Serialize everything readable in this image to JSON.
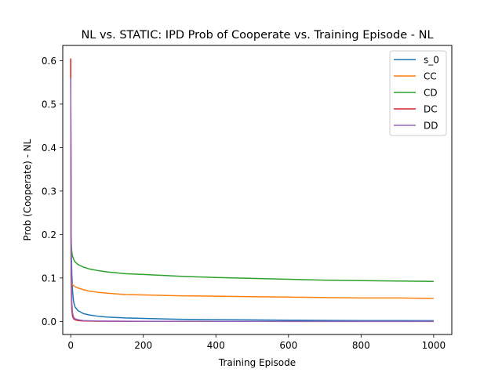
{
  "chart_data": {
    "type": "line",
    "title": "NL vs. STATIC: IPD Prob of Cooperate vs. Training Episode - NL",
    "xlabel": "Training Episode",
    "ylabel": "Prob (Cooperate) - NL",
    "xlim": [
      -22,
      1050
    ],
    "ylim": [
      -0.03,
      0.635
    ],
    "xticks": [
      0,
      200,
      400,
      600,
      800,
      1000
    ],
    "xtick_labels": [
      "0",
      "200",
      "400",
      "600",
      "800",
      "1000"
    ],
    "yticks": [
      0.0,
      0.1,
      0.2,
      0.3,
      0.4,
      0.5,
      0.6
    ],
    "ytick_labels": [
      "0.0",
      "0.1",
      "0.2",
      "0.3",
      "0.4",
      "0.5",
      "0.6"
    ],
    "grid": false,
    "legend_position": "upper-right",
    "x": [
      0,
      1,
      2,
      3,
      5,
      8,
      12,
      20,
      35,
      50,
      75,
      100,
      150,
      200,
      300,
      400,
      500,
      600,
      700,
      800,
      900,
      1000
    ],
    "series": [
      {
        "name": "s_0",
        "color": "#1f77b4",
        "values": [
          0.55,
          0.22,
          0.15,
          0.11,
          0.07,
          0.045,
          0.033,
          0.025,
          0.018,
          0.015,
          0.012,
          0.01,
          0.008,
          0.007,
          0.005,
          0.004,
          0.0035,
          0.003,
          0.0025,
          0.002,
          0.002,
          0.0018
        ]
      },
      {
        "name": "CC",
        "color": "#ff7f0e",
        "values": [
          0.6,
          0.092,
          0.089,
          0.087,
          0.085,
          0.082,
          0.08,
          0.077,
          0.073,
          0.07,
          0.067,
          0.065,
          0.062,
          0.061,
          0.059,
          0.058,
          0.057,
          0.056,
          0.055,
          0.054,
          0.054,
          0.053
        ]
      },
      {
        "name": "CD",
        "color": "#2ca02c",
        "values": [
          0.5,
          0.185,
          0.17,
          0.16,
          0.15,
          0.143,
          0.137,
          0.131,
          0.125,
          0.121,
          0.117,
          0.114,
          0.11,
          0.108,
          0.104,
          0.101,
          0.099,
          0.097,
          0.095,
          0.094,
          0.093,
          0.092
        ]
      },
      {
        "name": "DC",
        "color": "#d62728",
        "values": [
          0.605,
          0.1,
          0.05,
          0.025,
          0.012,
          0.006,
          0.004,
          0.002,
          0.001,
          0.0008,
          0.0005,
          0.0004,
          0.0003,
          0.0002,
          0.0001,
          0.0001,
          0.0001,
          0.0,
          0.0,
          0.0,
          0.0,
          0.0
        ]
      },
      {
        "name": "DD",
        "color": "#9467bd",
        "values": [
          0.56,
          0.15,
          0.08,
          0.045,
          0.02,
          0.01,
          0.006,
          0.004,
          0.002,
          0.0015,
          0.001,
          0.0008,
          0.0006,
          0.0005,
          0.0004,
          0.0003,
          0.0002,
          0.0002,
          0.0002,
          0.0001,
          0.0001,
          0.0001
        ]
      }
    ]
  }
}
